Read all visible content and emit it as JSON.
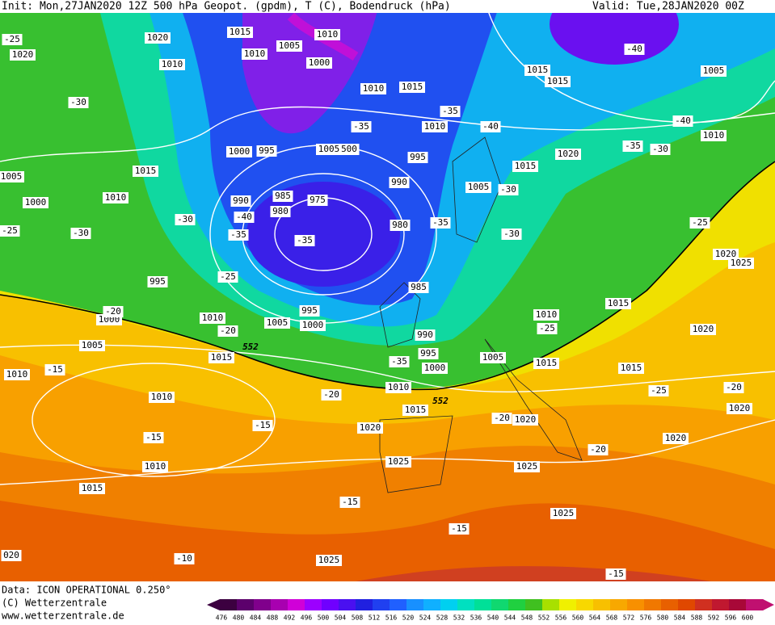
{
  "header": {
    "init": "Init: Mon,27JAN2020 12Z 500 hPa Geopot. (gpdm), T (C), Bodendruck (hPa)",
    "valid": "Valid: Tue,28JAN2020 00Z"
  },
  "footer": {
    "data": "Data: ICON OPERATIONAL 0.250°",
    "copyright": "(C) Wetterzentrale",
    "url": "www.wetterzentrale.de"
  },
  "map_labels": [
    "1020",
    "1015",
    "1010",
    "1005",
    "1010",
    "1000",
    "1010",
    "1020",
    "-25",
    "-30",
    "1010",
    "1015",
    "-35",
    "-35",
    "1010",
    "-40",
    "1015",
    "1015",
    "-40",
    "1005",
    "-40",
    "1010",
    "-35",
    "-30",
    "1020",
    "1015",
    "995",
    "1000",
    "995",
    "1005",
    "500",
    "990",
    "1015",
    "1005",
    "1000",
    "1010",
    "-30",
    "990",
    "985",
    "975",
    "980",
    "-40",
    "-35",
    "-30",
    "-25",
    "980",
    "-35",
    "1005",
    "-30",
    "-30",
    "-35",
    "-25",
    "995",
    "985",
    "995",
    "1005",
    "1000",
    "1010",
    "-20",
    "1000",
    "-20",
    "1005",
    "1015",
    "-15",
    "1010",
    "990",
    "995",
    "1000",
    "-35",
    "1005",
    "1015",
    "1010",
    "-25",
    "1015",
    "-25",
    "1020",
    "1025",
    "1020",
    "1015",
    "-25",
    "-20",
    "1020",
    "1010",
    "-20",
    "1015",
    "1010",
    "-15",
    "-15",
    "1020",
    "-20",
    "1020",
    "-20",
    "1020",
    "1010",
    "1025",
    "1025",
    "1015",
    "-15",
    "1025",
    "-15",
    "1025",
    "-10",
    "020",
    "-15"
  ],
  "contour_labels": [
    "552",
    "552"
  ],
  "colorbar": {
    "values": [
      476,
      480,
      484,
      488,
      492,
      496,
      500,
      504,
      508,
      512,
      516,
      520,
      524,
      528,
      532,
      536,
      540,
      544,
      548,
      552,
      556,
      560,
      564,
      568,
      572,
      576,
      580,
      584,
      588,
      592,
      596,
      600
    ],
    "colors": [
      "#3c0040",
      "#5c006c",
      "#80008c",
      "#a800b0",
      "#d000d8",
      "#9c00ff",
      "#7000ff",
      "#4a10f0",
      "#2020e0",
      "#2040f0",
      "#2060ff",
      "#1890ff",
      "#10b0ff",
      "#00d0f0",
      "#00e0c0",
      "#00e098",
      "#10d870",
      "#20d040",
      "#40c020",
      "#a8e000",
      "#f0f000",
      "#f8d800",
      "#f8c000",
      "#f8a800",
      "#f89000",
      "#f07800",
      "#e86000",
      "#e04800",
      "#d03020",
      "#c01830",
      "#a80838",
      "#c01070"
    ]
  }
}
